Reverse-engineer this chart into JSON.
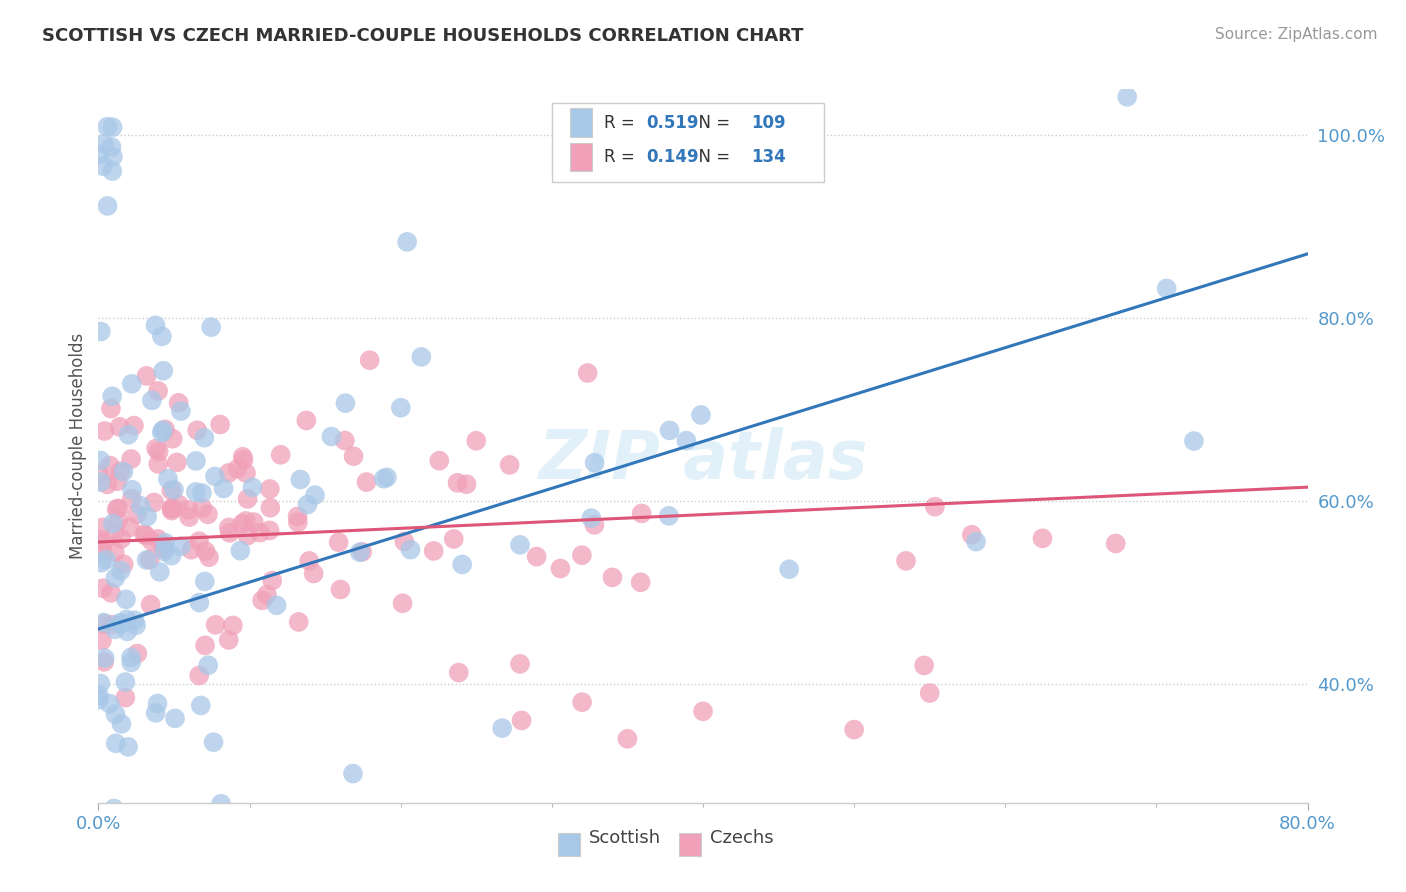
{
  "title": "SCOTTISH VS CZECH MARRIED-COUPLE HOUSEHOLDS CORRELATION CHART",
  "source": "Source: ZipAtlas.com",
  "ylabel": "Married-couple Households",
  "ytick_labels": [
    "40.0%",
    "60.0%",
    "80.0%",
    "100.0%"
  ],
  "ytick_values": [
    0.4,
    0.6,
    0.8,
    1.0
  ],
  "xtick_labels": [
    "0.0%",
    "80.0%"
  ],
  "xtick_values": [
    0.0,
    0.8
  ],
  "xlim": [
    0.0,
    0.8
  ],
  "ylim": [
    0.27,
    1.05
  ],
  "scottish_R": 0.519,
  "scottish_N": 109,
  "czechs_R": 0.149,
  "czechs_N": 134,
  "scottish_color": "#a8c8e8",
  "czechs_color": "#f0a0b8",
  "scottish_line_color": "#3377bb",
  "czechs_line_color": "#dd5577",
  "scottish_line_x0": 0.0,
  "scottish_line_y0": 0.46,
  "scottish_line_x1": 0.8,
  "scottish_line_y1": 0.87,
  "czechs_line_x0": 0.0,
  "czechs_line_y0": 0.555,
  "czechs_line_x1": 0.8,
  "czechs_line_y1": 0.615
}
